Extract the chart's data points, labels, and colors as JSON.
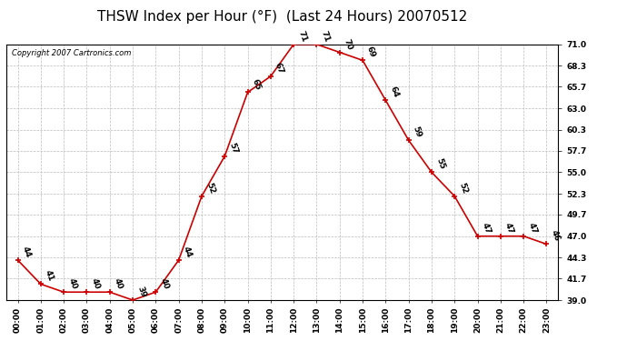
{
  "title": "THSW Index per Hour (°F)  (Last 24 Hours) 20070512",
  "copyright": "Copyright 2007 Cartronics.com",
  "x_labels": [
    "00:00",
    "01:00",
    "02:00",
    "03:00",
    "04:00",
    "05:00",
    "06:00",
    "07:00",
    "08:00",
    "09:00",
    "10:00",
    "11:00",
    "12:00",
    "13:00",
    "14:00",
    "15:00",
    "16:00",
    "17:00",
    "18:00",
    "19:00",
    "20:00",
    "21:00",
    "22:00",
    "23:00"
  ],
  "hours": [
    0,
    1,
    2,
    3,
    4,
    5,
    6,
    7,
    8,
    9,
    10,
    11,
    12,
    13,
    14,
    15,
    16,
    17,
    18,
    19,
    20,
    21,
    22,
    23
  ],
  "values": [
    44,
    41,
    40,
    40,
    40,
    39,
    40,
    44,
    52,
    57,
    65,
    67,
    71,
    71,
    70,
    69,
    64,
    59,
    55,
    52,
    47,
    47,
    47,
    46
  ],
  "line_color": "#cc0000",
  "marker_color": "#cc0000",
  "bg_color": "#ffffff",
  "plot_bg_color": "#ffffff",
  "grid_color": "#bbbbbb",
  "title_color": "#000000",
  "label_color": "#000000",
  "ylim": [
    39.0,
    71.0
  ],
  "yticks": [
    39.0,
    41.7,
    44.3,
    47.0,
    49.7,
    52.3,
    55.0,
    57.7,
    60.3,
    63.0,
    65.7,
    68.3,
    71.0
  ],
  "title_fontsize": 11,
  "label_fontsize": 6.5,
  "value_fontsize": 6.5,
  "copyright_fontsize": 6
}
